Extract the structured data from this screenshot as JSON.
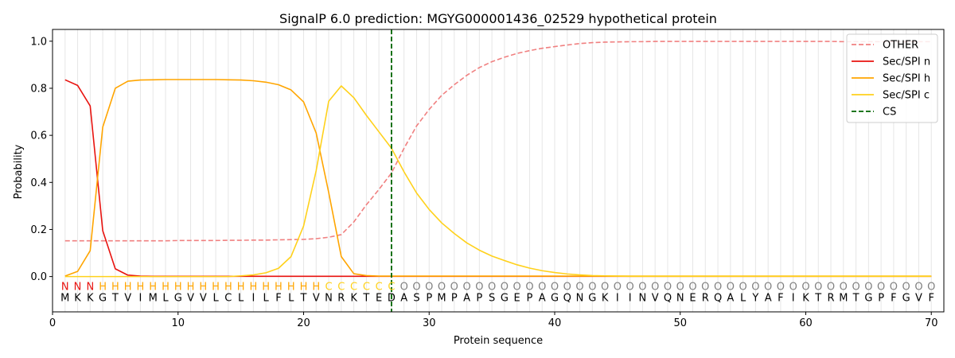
{
  "chart_data": {
    "type": "line",
    "title": "SignalP 6.0 prediction: MGYG000001436_02529 hypothetical protein",
    "xlabel": "Protein sequence",
    "ylabel": "Probability",
    "xlim": [
      0,
      71
    ],
    "ylim": [
      -0.15,
      1.05
    ],
    "xticks": [
      "0",
      "10",
      "20",
      "30",
      "40",
      "50",
      "60",
      "70"
    ],
    "yticks": [
      "0.0",
      "0.2",
      "0.4",
      "0.6",
      "0.8",
      "1.0"
    ],
    "grid": "vertical lines at each residue position",
    "legend_position": "top-right",
    "sequence": [
      "M",
      "K",
      "K",
      "G",
      "T",
      "V",
      "I",
      "M",
      "L",
      "G",
      "V",
      "V",
      "L",
      "C",
      "L",
      "I",
      "L",
      "F",
      "L",
      "T",
      "V",
      "N",
      "R",
      "K",
      "T",
      "E",
      "D",
      "A",
      "S",
      "P",
      "M",
      "P",
      "A",
      "P",
      "S",
      "G",
      "E",
      "P",
      "A",
      "G",
      "Q",
      "N",
      "G",
      "K",
      "I",
      "I",
      "N",
      "V",
      "Q",
      "N",
      "E",
      "R",
      "Q",
      "A",
      "L",
      "Y",
      "A",
      "F",
      "I",
      "K",
      "T",
      "R",
      "M",
      "T",
      "G",
      "P",
      "F",
      "G",
      "V",
      "F"
    ],
    "region_labels": [
      "N",
      "N",
      "N",
      "H",
      "H",
      "H",
      "H",
      "H",
      "H",
      "H",
      "H",
      "H",
      "H",
      "H",
      "H",
      "H",
      "H",
      "H",
      "H",
      "H",
      "H",
      "C",
      "C",
      "C",
      "C",
      "C",
      "C",
      "O",
      "O",
      "O",
      "O",
      "O",
      "O",
      "O",
      "O",
      "O",
      "O",
      "O",
      "O",
      "O",
      "O",
      "O",
      "O",
      "O",
      "O",
      "O",
      "O",
      "O",
      "O",
      "O",
      "O",
      "O",
      "O",
      "O",
      "O",
      "O",
      "O",
      "O",
      "O",
      "O",
      "O",
      "O",
      "O",
      "O",
      "O",
      "O",
      "O",
      "O",
      "O",
      "O"
    ],
    "region_colors": {
      "N": "#e8130f",
      "H": "#ffa500",
      "C": "#ffd11b",
      "O": "#808080"
    },
    "series": [
      {
        "name": "OTHER",
        "color": "#f08080",
        "dash": "dashed",
        "values": [
          0.152,
          0.152,
          0.152,
          0.152,
          0.152,
          0.152,
          0.152,
          0.152,
          0.152,
          0.153,
          0.153,
          0.153,
          0.153,
          0.154,
          0.154,
          0.155,
          0.155,
          0.156,
          0.157,
          0.158,
          0.161,
          0.167,
          0.178,
          0.232,
          0.305,
          0.37,
          0.44,
          0.545,
          0.64,
          0.71,
          0.77,
          0.815,
          0.855,
          0.888,
          0.913,
          0.932,
          0.948,
          0.96,
          0.97,
          0.977,
          0.984,
          0.99,
          0.994,
          0.996,
          0.997,
          0.998,
          0.998,
          0.999,
          0.999,
          0.999,
          0.999,
          0.999,
          0.999,
          0.999,
          0.999,
          0.999,
          0.999,
          0.999,
          0.999,
          0.999,
          0.999,
          0.999,
          0.998,
          0.998,
          0.998,
          0.998,
          0.998,
          0.998,
          0.998,
          0.998
        ]
      },
      {
        "name": "Sec/SPI n",
        "color": "#e8130f",
        "dash": "solid",
        "values": [
          0.836,
          0.812,
          0.725,
          0.195,
          0.033,
          0.006,
          0.002,
          0.001,
          0.001,
          0.001,
          0.001,
          0.001,
          0.001,
          0.001,
          0.001,
          0.001,
          0.001,
          0.001,
          0.001,
          0.001,
          0.001,
          0.001,
          0.001,
          0.001,
          0.001,
          0.001,
          0.001,
          0.001,
          0.001,
          0.001,
          0.001,
          0.001,
          0.001,
          0.001,
          0.001,
          0.001,
          0.001,
          0.001,
          0.001,
          0.001,
          0.001,
          0.001,
          0.001,
          0.001,
          0.001,
          0.001,
          0.001,
          0.001,
          0.001,
          0.001,
          0.001,
          0.001,
          0.001,
          0.001,
          0.001,
          0.001,
          0.001,
          0.001,
          0.001,
          0.001,
          0.001,
          0.001,
          0.001,
          0.001,
          0.001,
          0.001,
          0.001,
          0.001,
          0.001,
          0.001
        ]
      },
      {
        "name": "Sec/SPI h",
        "color": "#ffa500",
        "dash": "solid",
        "values": [
          0.002,
          0.022,
          0.11,
          0.635,
          0.8,
          0.83,
          0.835,
          0.836,
          0.837,
          0.837,
          0.837,
          0.837,
          0.837,
          0.836,
          0.835,
          0.832,
          0.826,
          0.815,
          0.793,
          0.742,
          0.61,
          0.357,
          0.085,
          0.012,
          0.004,
          0.002,
          0.002,
          0.002,
          0.002,
          0.002,
          0.002,
          0.002,
          0.002,
          0.002,
          0.002,
          0.002,
          0.002,
          0.002,
          0.002,
          0.002,
          0.002,
          0.002,
          0.002,
          0.002,
          0.002,
          0.002,
          0.002,
          0.002,
          0.002,
          0.002,
          0.002,
          0.002,
          0.002,
          0.002,
          0.002,
          0.002,
          0.002,
          0.002,
          0.002,
          0.002,
          0.002,
          0.002,
          0.002,
          0.002,
          0.002,
          0.002,
          0.002,
          0.002,
          0.002,
          0.002
        ]
      },
      {
        "name": "Sec/SPI c",
        "color": "#ffd11b",
        "dash": "solid",
        "values": [
          0.0,
          0.0,
          0.0,
          0.0,
          0.0,
          0.0,
          0.0,
          0.0,
          0.0,
          0.0,
          0.0,
          0.0,
          0.0,
          0.0,
          0.003,
          0.007,
          0.016,
          0.035,
          0.085,
          0.215,
          0.45,
          0.745,
          0.81,
          0.76,
          0.685,
          0.615,
          0.545,
          0.445,
          0.355,
          0.285,
          0.228,
          0.183,
          0.143,
          0.112,
          0.087,
          0.068,
          0.05,
          0.036,
          0.025,
          0.017,
          0.011,
          0.007,
          0.004,
          0.003,
          0.002,
          0.001,
          0.001,
          0.001,
          0.001,
          0.001,
          0.001,
          0.001,
          0.001,
          0.001,
          0.001,
          0.001,
          0.001,
          0.001,
          0.001,
          0.001,
          0.001,
          0.001,
          0.001,
          0.001,
          0.001,
          0.001,
          0.001,
          0.001,
          0.001,
          0.001
        ]
      },
      {
        "name": "CS",
        "color": "#006400",
        "dash": "dashed",
        "x": 27
      }
    ]
  }
}
